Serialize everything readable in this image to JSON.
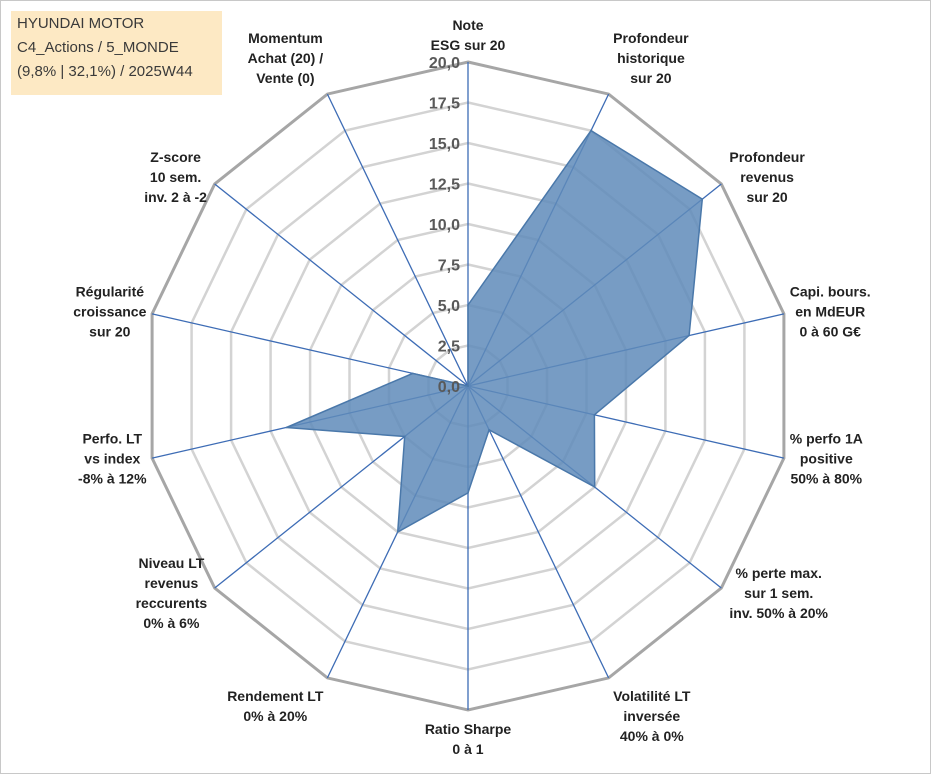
{
  "info": {
    "line1": "HYUNDAI MOTOR",
    "line2": "C4_Actions / 5_MONDE",
    "line3": "(9,8% | 32,1%) / 2025W44"
  },
  "chart_data": {
    "type": "radar",
    "rmin": 0,
    "rmax": 20,
    "step": 2.5,
    "tick_labels": [
      "0,0",
      "2,5",
      "5,0",
      "7,5",
      "10,0",
      "12,5",
      "15,0",
      "17,5",
      "20,0"
    ],
    "axes": [
      {
        "label": [
          "Note",
          "ESG sur 20"
        ],
        "value": 5.0
      },
      {
        "label": [
          "Profondeur",
          "historique",
          "sur 20"
        ],
        "value": 17.5
      },
      {
        "label": [
          "Profondeur",
          "revenus",
          "sur 20"
        ],
        "value": 18.5
      },
      {
        "label": [
          "Capi. bours.",
          "en MdEUR",
          "0 à 60 G€"
        ],
        "value": 14.0
      },
      {
        "label": [
          "% perfo 1A",
          "positive",
          "50% à 80%"
        ],
        "value": 8.0
      },
      {
        "label": [
          "% perte max.",
          "sur 1 sem.",
          "inv. 50% à 20%"
        ],
        "value": 10.0
      },
      {
        "label": [
          "Volatilité LT",
          "inversée",
          "40% à 0%"
        ],
        "value": 3.0
      },
      {
        "label": [
          "Ratio Sharpe",
          "0 à 1"
        ],
        "value": 6.6
      },
      {
        "label": [
          "Rendement LT",
          "0% à 20%"
        ],
        "value": 10.0
      },
      {
        "label": [
          "Niveau LT",
          "revenus",
          "reccurents",
          "0% à 6%"
        ],
        "value": 5.0
      },
      {
        "label": [
          "Perfo. LT",
          "vs index",
          "-8% à 12%"
        ],
        "value": 11.5
      },
      {
        "label": [
          "Régularité",
          "croissance",
          "sur 20"
        ],
        "value": 3.5
      },
      {
        "label": [
          "Z-score",
          "10 sem.",
          "inv. 2 à -2"
        ],
        "value": 0.0
      },
      {
        "label": [
          "Momentum",
          "Achat (20) /",
          "Vente (0)"
        ],
        "value": 0.0
      }
    ],
    "colors": {
      "fill": "#5f8bba",
      "stroke": "#4a78aa",
      "spoke": "#3d6cb5",
      "grid_outer": "#a6a6a6",
      "grid_inner": "#d3d3d3"
    }
  }
}
